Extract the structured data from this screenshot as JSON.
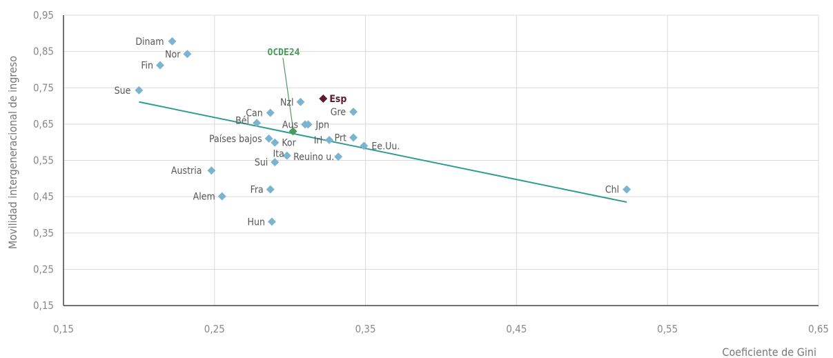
{
  "chart_data": {
    "type": "scatter",
    "xlabel": "Coeficiente de Gini",
    "ylabel": "Movilidad intergeneracional de ingreso",
    "xlim": [
      0.15,
      0.65
    ],
    "ylim": [
      0.15,
      0.95
    ],
    "xticks": [
      0.15,
      0.25,
      0.35,
      0.45,
      0.55,
      0.65
    ],
    "yticks": [
      0.15,
      0.25,
      0.35,
      0.45,
      0.55,
      0.65,
      0.75,
      0.85,
      0.95
    ],
    "xtick_labels": [
      "0,15",
      "0,25",
      "0,35",
      "0,45",
      "0,55",
      "0,65"
    ],
    "ytick_labels": [
      "0,15",
      "0,25",
      "0,35",
      "0,45",
      "0,55",
      "0,65",
      "0,75",
      "0,85",
      "0,95"
    ],
    "grid": true,
    "colors": {
      "point": "#7ab4cf",
      "trend": "#2e9c8f",
      "highlight": "#5c1a33",
      "oecd": "#4a9a5e",
      "grid": "#d9d9d9",
      "axis": "#444444"
    },
    "points": [
      {
        "label": "Dinam",
        "x": 0.222,
        "y": 0.878
      },
      {
        "label": "Nor",
        "x": 0.232,
        "y": 0.843
      },
      {
        "label": "Fin",
        "x": 0.214,
        "y": 0.812
      },
      {
        "label": "Sue",
        "x": 0.2,
        "y": 0.743
      },
      {
        "label": "Can",
        "x": 0.287,
        "y": 0.681
      },
      {
        "label": "Bél",
        "x": 0.278,
        "y": 0.653
      },
      {
        "label": "Nzl",
        "x": 0.307,
        "y": 0.711
      },
      {
        "label": "Gre",
        "x": 0.342,
        "y": 0.684
      },
      {
        "label": "Aus",
        "x": 0.31,
        "y": 0.649
      },
      {
        "label": "Jpn",
        "x": 0.312,
        "y": 0.649
      },
      {
        "label": "Países bajos",
        "x": 0.286,
        "y": 0.61
      },
      {
        "label": "Kor",
        "x": 0.29,
        "y": 0.599
      },
      {
        "label": "Irl",
        "x": 0.326,
        "y": 0.606
      },
      {
        "label": "Prt",
        "x": 0.342,
        "y": 0.613
      },
      {
        "label": "Ee.Uu.",
        "x": 0.349,
        "y": 0.59
      },
      {
        "label": "Ita",
        "x": 0.298,
        "y": 0.563
      },
      {
        "label": "Reuino u.",
        "x": 0.332,
        "y": 0.56
      },
      {
        "label": "Sui",
        "x": 0.29,
        "y": 0.545
      },
      {
        "label": "Austria",
        "x": 0.248,
        "y": 0.522
      },
      {
        "label": "Fra",
        "x": 0.287,
        "y": 0.47
      },
      {
        "label": "Alem",
        "x": 0.255,
        "y": 0.451
      },
      {
        "label": "Hun",
        "x": 0.288,
        "y": 0.381
      },
      {
        "label": "Chl",
        "x": 0.523,
        "y": 0.47
      }
    ],
    "highlight": {
      "label": "Esp",
      "x": 0.322,
      "y": 0.72
    },
    "oecd_average": {
      "label": "OCDE24",
      "x": 0.302,
      "y": 0.63
    },
    "trendline": {
      "x": [
        0.2,
        0.523
      ],
      "y": [
        0.711,
        0.435
      ]
    }
  }
}
